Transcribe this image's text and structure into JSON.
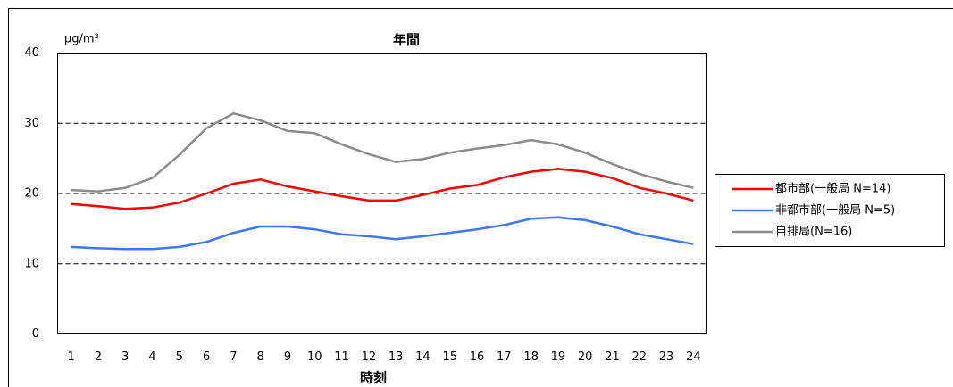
{
  "chart_data": {
    "type": "line",
    "title": "年間",
    "y_unit": "μg/m³",
    "x_label": "時刻",
    "categories": [
      "1",
      "2",
      "3",
      "4",
      "5",
      "6",
      "7",
      "8",
      "9",
      "10",
      "11",
      "12",
      "13",
      "14",
      "15",
      "16",
      "17",
      "18",
      "19",
      "20",
      "21",
      "22",
      "23",
      "24"
    ],
    "series": [
      {
        "name": "都市部(一般局 N=14)",
        "color": "#ff0000",
        "values": [
          18.5,
          18.2,
          17.8,
          18.0,
          18.7,
          20.0,
          21.4,
          22.0,
          21.0,
          20.3,
          19.6,
          19.0,
          19.0,
          19.8,
          20.7,
          21.2,
          22.3,
          23.1,
          23.5,
          23.1,
          22.2,
          20.8,
          20.0,
          19.0
        ]
      },
      {
        "name": "非都市部(一般局 N=5)",
        "color": "#3b78ff",
        "values": [
          12.4,
          12.2,
          12.1,
          12.1,
          12.4,
          13.1,
          14.4,
          15.3,
          15.3,
          14.9,
          14.2,
          13.9,
          13.5,
          13.9,
          14.4,
          14.9,
          15.5,
          16.4,
          16.6,
          16.2,
          15.3,
          14.2,
          13.5,
          12.8
        ]
      },
      {
        "name": "自排局(N=16)",
        "color": "#8c8c8c",
        "values": [
          20.5,
          20.3,
          20.8,
          22.2,
          25.5,
          29.3,
          31.4,
          30.4,
          28.9,
          28.6,
          27.0,
          25.6,
          24.5,
          24.9,
          25.8,
          26.4,
          26.9,
          27.6,
          27.0,
          25.8,
          24.2,
          22.8,
          21.7,
          20.8
        ]
      }
    ],
    "ylim": [
      0,
      40
    ],
    "yticks": [
      0,
      10,
      20,
      30,
      40
    ],
    "grid": true,
    "legend": "right"
  }
}
